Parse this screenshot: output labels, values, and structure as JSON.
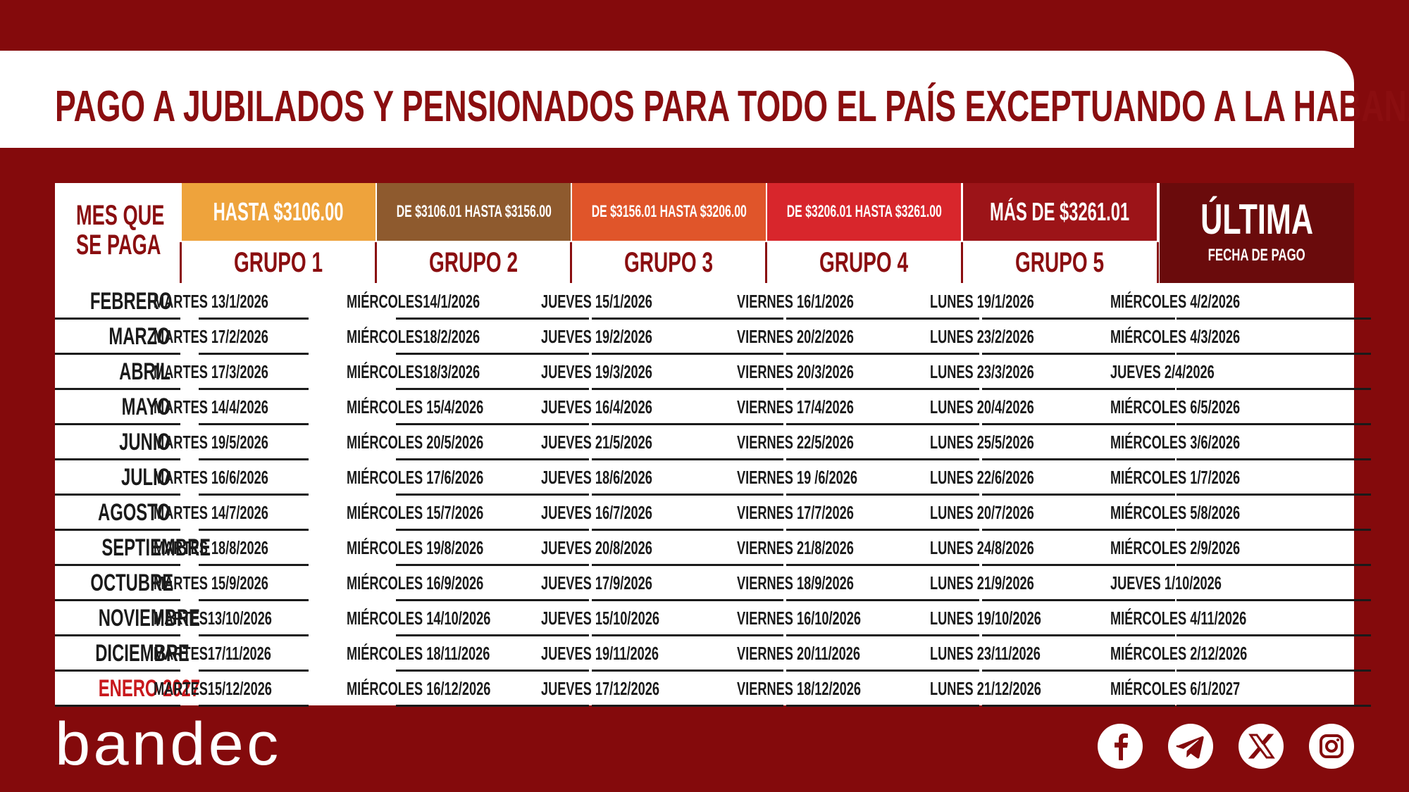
{
  "title": "PAGO A JUBILADOS Y PENSIONADOS PARA TODO EL PAÍS EXCEPTUANDO A LA HABANA",
  "header": {
    "month_line1": "MES QUE",
    "month_line2": "SE PAGA",
    "ranges": [
      {
        "label": "HASTA  $3106.00",
        "color": "#eea33c"
      },
      {
        "label": "DE $3106.01 HASTA $3156.00",
        "color": "#8e5a2e"
      },
      {
        "label": "DE $3156.01 HASTA $3206.00",
        "color": "#e0552a"
      },
      {
        "label": "DE $3206.01 HASTA $3261.00",
        "color": "#d8262c"
      },
      {
        "label": "MÁS DE  $3261.01",
        "color": "#9c1418"
      }
    ],
    "groups": [
      "GRUPO 1",
      "GRUPO 2",
      "GRUPO 3",
      "GRUPO 4",
      "GRUPO 5"
    ],
    "ultima_big": "ÚLTIMA",
    "ultima_small": "FECHA DE PAGO"
  },
  "rows": [
    {
      "month": "FEBRERO",
      "g1": "MARTES 13/1/2026",
      "g2": "MIÉRCOLES14/1/2026",
      "g3": "JUEVES 15/1/2026",
      "g4": "VIERNES 16/1/2026",
      "g5": "LUNES 19/1/2026",
      "last": "MIÉRCOLES 4/2/2026"
    },
    {
      "month": "MARZO",
      "g1": "MARTES 17/2/2026",
      "g2": "MIÉRCOLES18/2/2026",
      "g3": "JUEVES 19/2/2026",
      "g4": "VIERNES 20/2/2026",
      "g5": "LUNES 23/2/2026",
      "last": "MIÉRCOLES 4/3/2026"
    },
    {
      "month": "ABRIL",
      "g1": "MARTES 17/3/2026",
      "g2": "MIÉRCOLES18/3/2026",
      "g3": "JUEVES 19/3/2026",
      "g4": "VIERNES 20/3/2026",
      "g5": "LUNES 23/3/2026",
      "last": "JUEVES 2/4/2026"
    },
    {
      "month": "MAYO",
      "g1": "MARTES 14/4/2026",
      "g2": "MIÉRCOLES 15/4/2026",
      "g3": "JUEVES  16/4/2026",
      "g4": "VIERNES 17/4/2026",
      "g5": "LUNES 20/4/2026",
      "last": "MIÉRCOLES 6/5/2026"
    },
    {
      "month": "JUNIO",
      "g1": "MARTES 19/5/2026",
      "g2": "MIÉRCOLES 20/5/2026",
      "g3": "JUEVES 21/5/2026",
      "g4": "VIERNES 22/5/2026",
      "g5": "LUNES 25/5/2026",
      "last": "MIÉRCOLES 3/6/2026"
    },
    {
      "month": "JULIO",
      "g1": "MARTES 16/6/2026",
      "g2": "MIÉRCOLES 17/6/2026",
      "g3": "JUEVES 18/6/2026",
      "g4": "VIERNES 19 /6/2026",
      "g5": "LUNES 22/6/2026",
      "last": "MIÉRCOLES 1/7/2026"
    },
    {
      "month": "AGOSTO",
      "g1": "MARTES 14/7/2026",
      "g2": "MIÉRCOLES 15/7/2026",
      "g3": "JUEVES 16/7/2026",
      "g4": "VIERNES 17/7/2026",
      "g5": "LUNES 20/7/2026",
      "last": "MIÉRCOLES 5/8/2026"
    },
    {
      "month": "SEPTIEMBRE",
      "g1": "MARTES 18/8/2026",
      "g2": "MIÉRCOLES 19/8/2026",
      "g3": "JUEVES 20/8/2026",
      "g4": "VIERNES 21/8/2026",
      "g5": "LUNES 24/8/2026",
      "last": "MIÉRCOLES 2/9/2026"
    },
    {
      "month": "OCTUBRE",
      "g1": "MARTES 15/9/2026",
      "g2": "MIÉRCOLES 16/9/2026",
      "g3": "JUEVES 17/9/2026",
      "g4": "VIERNES 18/9/2026",
      "g5": "LUNES 21/9/2026",
      "last": "JUEVES 1/10/2026"
    },
    {
      "month": "NOVIEMBRE",
      "g1": "MARTES13/10/2026",
      "g2": "MIÉRCOLES 14/10/2026",
      "g3": "JUEVES 15/10/2026",
      "g4": "VIERNES 16/10/2026",
      "g5": "LUNES 19/10/2026",
      "last": "MIÉRCOLES 4/11/2026"
    },
    {
      "month": "DICIEMBRE",
      "g1": "MARTES17/11/2026",
      "g2": "MIÉRCOLES 18/11/2026",
      "g3": "JUEVES 19/11/2026",
      "g4": "VIERNES 20/11/2026",
      "g5": "LUNES 23/11/2026",
      "last": "MIÉRCOLES 2/12/2026"
    },
    {
      "month": "ENERO 2027",
      "highlight": true,
      "g1": "MARTES15/12/2026",
      "g2": "MIÉRCOLES 16/12/2026",
      "g3": "JUEVES 17/12/2026",
      "g4": "VIERNES 18/12/2026",
      "g5": "LUNES 21/12/2026",
      "last": "MIÉRCOLES 6/1/2027"
    }
  ],
  "footer": {
    "logo": "bandec",
    "social_icons": [
      "facebook-icon",
      "telegram-icon",
      "x-icon",
      "instagram-icon"
    ]
  },
  "colors": {
    "background": "#840a0c",
    "accent_text": "#8a0e10",
    "highlight_month": "#c8181c",
    "ultima_bg": "#6a0b0c"
  }
}
